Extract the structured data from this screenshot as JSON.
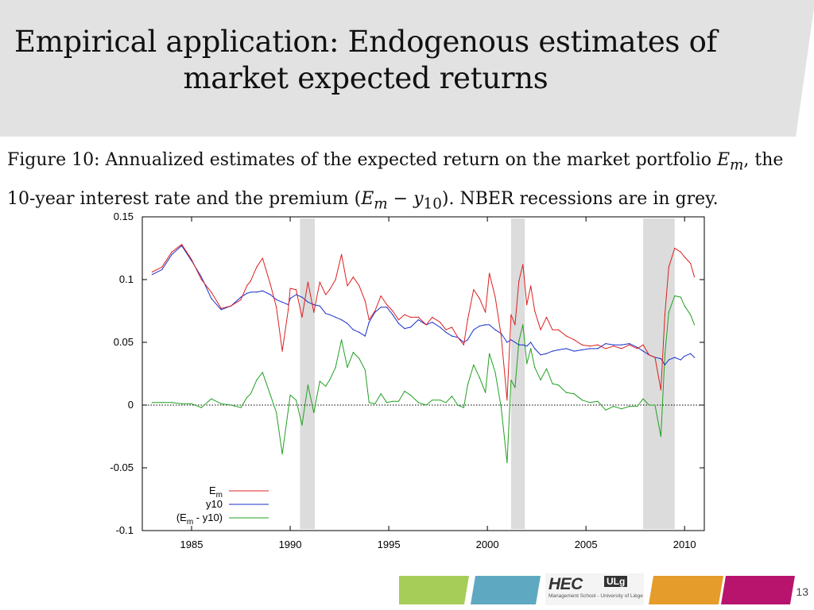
{
  "slide": {
    "title_line1": "Empirical application: Endogenous estimates of",
    "title_line2": "market expected returns",
    "page_number": "13"
  },
  "caption": {
    "part1": "Figure 10:  Annualized estimates of the expected return on the market portfolio ",
    "em": "E",
    "em_sub": "m",
    "part2": ", the",
    "line2_part1": "10-year interest rate and the premium (",
    "line2_mid": " − ",
    "y10": "y",
    "y10_sub": "10",
    "line2_part2": "). NBER recessions are in grey."
  },
  "logo": {
    "text": "HEC",
    "badge": "ULg",
    "subtitle": "Management School - University of Liège"
  },
  "colors": {
    "em": "#dd2020",
    "y10": "#1a2fcc",
    "premium": "#22a022",
    "recession": "#dcdcdc",
    "header_band": "#e2e2e2",
    "strip_green": "#a6cd57",
    "strip_blue": "#5ea9c1",
    "strip_orange": "#e59c2a",
    "strip_magenta": "#b8146e"
  },
  "chart_data": {
    "type": "line",
    "title": "",
    "xlabel": "",
    "ylabel": "",
    "xlim": [
      1982.5,
      2011
    ],
    "ylim": [
      -0.1,
      0.15
    ],
    "xticks": [
      "1985",
      "1990",
      "1995",
      "2000",
      "2005",
      "2010"
    ],
    "yticks": [
      "-0.1",
      "-0.05",
      "0",
      "0.05",
      "0.1",
      "0.15"
    ],
    "grid": false,
    "zero_line": "dotted",
    "legend_position": "bottom-left",
    "recessions": [
      [
        1990.5,
        1991.25
      ],
      [
        2001.2,
        2001.9
      ],
      [
        2007.9,
        2009.5
      ]
    ],
    "series": [
      {
        "name": "E",
        "name_sub": "m",
        "color": "#dd2020",
        "x": [
          1983.0,
          1983.5,
          1984.0,
          1984.5,
          1985.0,
          1985.5,
          1986.0,
          1986.5,
          1987.0,
          1987.5,
          1987.8,
          1988.0,
          1988.3,
          1988.6,
          1989.0,
          1989.3,
          1989.6,
          1989.9,
          1990.0,
          1990.3,
          1990.6,
          1990.9,
          1991.2,
          1991.5,
          1991.8,
          1992.0,
          1992.3,
          1992.6,
          1992.9,
          1993.2,
          1993.5,
          1993.8,
          1994.0,
          1994.3,
          1994.6,
          1994.9,
          1995.2,
          1995.5,
          1995.8,
          1996.1,
          1996.5,
          1996.9,
          1997.2,
          1997.6,
          1997.9,
          1998.2,
          1998.5,
          1998.8,
          1999.0,
          1999.3,
          1999.6,
          1999.9,
          2000.1,
          2000.4,
          2000.7,
          2001.0,
          2001.2,
          2001.4,
          2001.6,
          2001.8,
          2002.0,
          2002.2,
          2002.4,
          2002.7,
          2003.0,
          2003.3,
          2003.6,
          2004.0,
          2004.4,
          2004.8,
          2005.2,
          2005.6,
          2006.0,
          2006.4,
          2006.8,
          2007.2,
          2007.6,
          2007.9,
          2008.2,
          2008.5,
          2008.8,
          2009.0,
          2009.2,
          2009.5,
          2009.8,
          2010.0,
          2010.3,
          2010.5
        ],
        "values": [
          0.106,
          0.11,
          0.122,
          0.128,
          0.116,
          0.1,
          0.09,
          0.077,
          0.079,
          0.084,
          0.095,
          0.099,
          0.11,
          0.117,
          0.096,
          0.078,
          0.043,
          0.076,
          0.093,
          0.092,
          0.07,
          0.098,
          0.074,
          0.098,
          0.088,
          0.092,
          0.1,
          0.12,
          0.095,
          0.102,
          0.095,
          0.083,
          0.068,
          0.075,
          0.087,
          0.08,
          0.075,
          0.068,
          0.072,
          0.07,
          0.07,
          0.064,
          0.07,
          0.066,
          0.06,
          0.062,
          0.054,
          0.048,
          0.068,
          0.092,
          0.085,
          0.074,
          0.105,
          0.086,
          0.055,
          0.004,
          0.072,
          0.064,
          0.099,
          0.112,
          0.08,
          0.095,
          0.075,
          0.06,
          0.07,
          0.06,
          0.06,
          0.055,
          0.052,
          0.048,
          0.047,
          0.048,
          0.045,
          0.047,
          0.045,
          0.048,
          0.045,
          0.048,
          0.04,
          0.038,
          0.012,
          0.072,
          0.11,
          0.125,
          0.122,
          0.118,
          0.113,
          0.102
        ]
      },
      {
        "name": "y10",
        "color": "#1a2fcc",
        "x": [
          1983.0,
          1983.5,
          1984.0,
          1984.5,
          1985.0,
          1985.5,
          1986.0,
          1986.5,
          1987.0,
          1987.5,
          1987.8,
          1988.0,
          1988.3,
          1988.6,
          1989.0,
          1989.3,
          1989.6,
          1989.9,
          1990.0,
          1990.3,
          1990.6,
          1990.9,
          1991.2,
          1991.5,
          1991.8,
          1992.0,
          1992.3,
          1992.6,
          1992.9,
          1993.2,
          1993.5,
          1993.8,
          1994.0,
          1994.3,
          1994.6,
          1994.9,
          1995.2,
          1995.5,
          1995.8,
          1996.1,
          1996.5,
          1996.9,
          1997.2,
          1997.6,
          1997.9,
          1998.2,
          1998.5,
          1998.8,
          1999.0,
          1999.3,
          1999.6,
          1999.9,
          2000.1,
          2000.4,
          2000.7,
          2001.0,
          2001.2,
          2001.4,
          2001.6,
          2001.8,
          2002.0,
          2002.2,
          2002.4,
          2002.7,
          2003.0,
          2003.3,
          2003.6,
          2004.0,
          2004.4,
          2004.8,
          2005.2,
          2005.6,
          2006.0,
          2006.4,
          2006.8,
          2007.2,
          2007.6,
          2007.9,
          2008.2,
          2008.5,
          2008.8,
          2009.0,
          2009.2,
          2009.5,
          2009.8,
          2010.0,
          2010.3,
          2010.5
        ],
        "values": [
          0.104,
          0.108,
          0.12,
          0.127,
          0.115,
          0.102,
          0.085,
          0.076,
          0.079,
          0.086,
          0.089,
          0.09,
          0.09,
          0.091,
          0.088,
          0.084,
          0.082,
          0.08,
          0.085,
          0.088,
          0.086,
          0.082,
          0.08,
          0.079,
          0.073,
          0.072,
          0.07,
          0.068,
          0.065,
          0.06,
          0.058,
          0.055,
          0.066,
          0.074,
          0.078,
          0.078,
          0.072,
          0.065,
          0.061,
          0.062,
          0.068,
          0.064,
          0.066,
          0.062,
          0.058,
          0.055,
          0.054,
          0.05,
          0.052,
          0.06,
          0.063,
          0.064,
          0.064,
          0.06,
          0.057,
          0.05,
          0.052,
          0.05,
          0.048,
          0.048,
          0.047,
          0.05,
          0.045,
          0.04,
          0.041,
          0.043,
          0.044,
          0.045,
          0.043,
          0.044,
          0.045,
          0.045,
          0.049,
          0.048,
          0.048,
          0.049,
          0.046,
          0.043,
          0.04,
          0.038,
          0.037,
          0.032,
          0.036,
          0.038,
          0.036,
          0.039,
          0.041,
          0.038
        ]
      },
      {
        "name": "(E",
        "name_sub": "m",
        "name_suffix": " - y10)",
        "color": "#22a022",
        "x": [
          1983.0,
          1983.5,
          1984.0,
          1984.5,
          1985.0,
          1985.5,
          1986.0,
          1986.5,
          1987.0,
          1987.5,
          1987.8,
          1988.0,
          1988.3,
          1988.6,
          1989.0,
          1989.3,
          1989.6,
          1989.9,
          1990.0,
          1990.3,
          1990.6,
          1990.9,
          1991.2,
          1991.5,
          1991.8,
          1992.0,
          1992.3,
          1992.6,
          1992.9,
          1993.2,
          1993.5,
          1993.8,
          1994.0,
          1994.3,
          1994.6,
          1994.9,
          1995.2,
          1995.5,
          1995.8,
          1996.1,
          1996.5,
          1996.9,
          1997.2,
          1997.6,
          1997.9,
          1998.2,
          1998.5,
          1998.8,
          1999.0,
          1999.3,
          1999.6,
          1999.9,
          2000.1,
          2000.4,
          2000.7,
          2001.0,
          2001.2,
          2001.4,
          2001.6,
          2001.8,
          2002.0,
          2002.2,
          2002.4,
          2002.7,
          2003.0,
          2003.3,
          2003.6,
          2004.0,
          2004.4,
          2004.8,
          2005.2,
          2005.6,
          2006.0,
          2006.4,
          2006.8,
          2007.2,
          2007.6,
          2007.9,
          2008.2,
          2008.5,
          2008.8,
          2009.0,
          2009.2,
          2009.5,
          2009.8,
          2010.0,
          2010.3,
          2010.5
        ],
        "values": [
          0.002,
          0.002,
          0.002,
          0.001,
          0.001,
          -0.002,
          0.005,
          0.001,
          0.0,
          -0.002,
          0.006,
          0.009,
          0.02,
          0.026,
          0.008,
          -0.006,
          -0.039,
          -0.004,
          0.008,
          0.004,
          -0.016,
          0.016,
          -0.006,
          0.019,
          0.015,
          0.02,
          0.03,
          0.052,
          0.03,
          0.042,
          0.037,
          0.028,
          0.002,
          0.001,
          0.009,
          0.002,
          0.003,
          0.003,
          0.011,
          0.008,
          0.002,
          0.0,
          0.004,
          0.004,
          0.002,
          0.007,
          0.0,
          -0.002,
          0.016,
          0.032,
          0.022,
          0.01,
          0.041,
          0.026,
          -0.002,
          -0.046,
          0.02,
          0.014,
          0.051,
          0.064,
          0.033,
          0.045,
          0.03,
          0.02,
          0.029,
          0.017,
          0.016,
          0.01,
          0.009,
          0.004,
          0.002,
          0.003,
          -0.004,
          -0.001,
          -0.003,
          -0.001,
          -0.001,
          0.005,
          0.0,
          0.0,
          -0.025,
          0.04,
          0.074,
          0.087,
          0.086,
          0.079,
          0.072,
          0.064
        ]
      }
    ]
  }
}
